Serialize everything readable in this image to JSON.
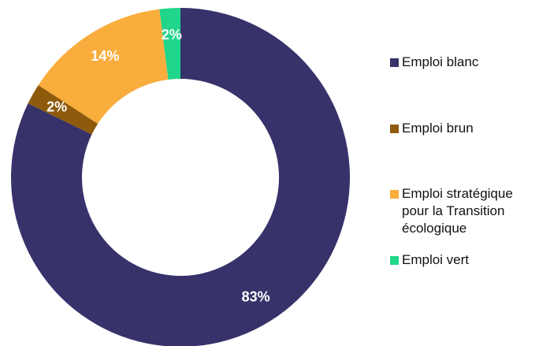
{
  "chart_data": {
    "type": "donut",
    "categories": [
      "Emploi blanc",
      "Emploi brun",
      "Emploi stratégique pour la Transition écologique",
      "Emploi vert"
    ],
    "values": [
      83,
      2,
      14,
      2
    ],
    "value_labels": [
      "83%",
      "2%",
      "14%",
      "2%"
    ],
    "colors": [
      "#37326a",
      "#8e5a0c",
      "#f9ad3c",
      "#1fd68a"
    ],
    "legend": "right"
  }
}
